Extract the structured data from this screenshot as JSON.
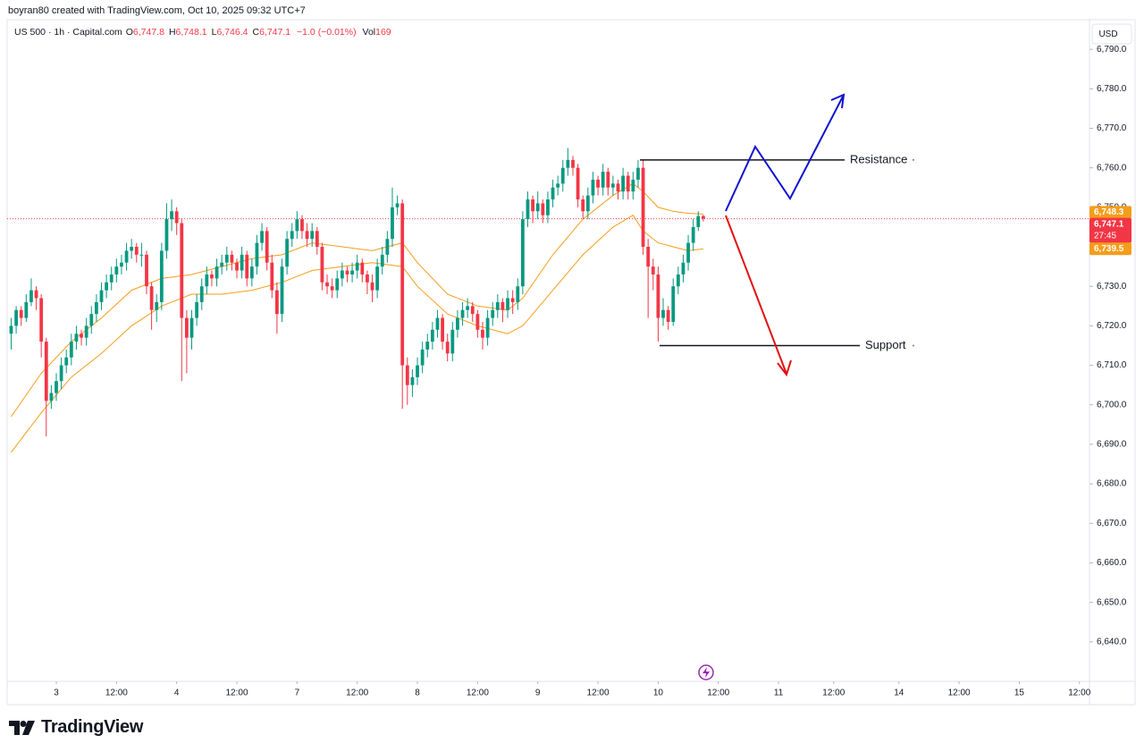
{
  "header": {
    "credit": "boyran80 created with TradingView.com, Oct 10, 2025 09:32 UTC+7",
    "symbol": "US 500 · 1h · Capital.com",
    "ohlc": [
      {
        "key": "O",
        "value": "6,747.8"
      },
      {
        "key": "H",
        "value": "6,748.1"
      },
      {
        "key": "L",
        "value": "6,746.4"
      },
      {
        "key": "C",
        "value": "6,747.1"
      }
    ],
    "change": "−1.0 (−0.01%)",
    "vol_key": "Vol",
    "vol": "169",
    "logo": "TradingView"
  },
  "chart_data": {
    "type": "candlestick",
    "currency": "USD",
    "up_color": "#089981",
    "down_color": "#f23645",
    "xlim": [
      -9.8,
      206
    ],
    "ylim": [
      6630,
      6797.5
    ],
    "xticks": [
      {
        "value": 0,
        "label": "3"
      },
      {
        "value": 12,
        "label": "12:00"
      },
      {
        "value": 24,
        "label": "4"
      },
      {
        "value": 36,
        "label": "12:00"
      },
      {
        "value": 48,
        "label": "7"
      },
      {
        "value": 60,
        "label": "12:00"
      },
      {
        "value": 72,
        "label": "8"
      },
      {
        "value": 84,
        "label": "12:00"
      },
      {
        "value": 96,
        "label": "9"
      },
      {
        "value": 108,
        "label": "12:00"
      },
      {
        "value": 120,
        "label": "10"
      },
      {
        "value": 132,
        "label": "12:00"
      },
      {
        "value": 144,
        "label": "11"
      },
      {
        "value": 155,
        "label": "12:00"
      },
      {
        "value": 168,
        "label": "14"
      },
      {
        "value": 180,
        "label": "12:00"
      },
      {
        "value": 192,
        "label": "15"
      },
      {
        "value": 204,
        "label": "12:00"
      }
    ],
    "yticks": [
      {
        "value": 6640,
        "label": "6,640.0"
      },
      {
        "value": 6650,
        "label": "6,650.0"
      },
      {
        "value": 6660,
        "label": "6,660.0"
      },
      {
        "value": 6670,
        "label": "6,670.0"
      },
      {
        "value": 6680,
        "label": "6,680.0"
      },
      {
        "value": 6690,
        "label": "6,690.0"
      },
      {
        "value": 6700,
        "label": "6,700.0"
      },
      {
        "value": 6710,
        "label": "6,710.0"
      },
      {
        "value": 6720,
        "label": "6,720.0"
      },
      {
        "value": 6730,
        "label": "6,730.0"
      },
      {
        "value": 6740,
        "label": "6,740.0"
      },
      {
        "value": 6750,
        "label": "6,750.0"
      },
      {
        "value": 6760,
        "label": "6,760.0"
      },
      {
        "value": 6770,
        "label": "6,770.0"
      },
      {
        "value": 6780,
        "label": "6,780.0"
      },
      {
        "value": 6790,
        "label": "6,790.0"
      }
    ],
    "x": [
      -9,
      -8,
      -7,
      -6,
      -5,
      -4,
      -3,
      -2,
      -1,
      0,
      1,
      2,
      3,
      4,
      5,
      6,
      7,
      8,
      9,
      10,
      11,
      12,
      13,
      14,
      15,
      16,
      17,
      18,
      19,
      20,
      21,
      22,
      23,
      24,
      25,
      26,
      27,
      28,
      29,
      30,
      31,
      32,
      33,
      34,
      35,
      36,
      37,
      38,
      39,
      40,
      41,
      42,
      43,
      44,
      45,
      46,
      47,
      48,
      49,
      50,
      51,
      52,
      53,
      54,
      55,
      56,
      57,
      58,
      59,
      60,
      61,
      62,
      63,
      64,
      65,
      66,
      67,
      68,
      69,
      70,
      71,
      72,
      73,
      74,
      75,
      76,
      77,
      78,
      79,
      80,
      81,
      82,
      83,
      84,
      85,
      86,
      87,
      88,
      89,
      90,
      91,
      92,
      93,
      94,
      95,
      96,
      97,
      98,
      99,
      100,
      101,
      102,
      103,
      104,
      105,
      106,
      107,
      108,
      109,
      110,
      111,
      112,
      113,
      114,
      115,
      116,
      117,
      118,
      119,
      120,
      121,
      122,
      123,
      124,
      125,
      126,
      127,
      128,
      129
    ],
    "candles": [
      [
        6718,
        6722,
        6714,
        6720
      ],
      [
        6720,
        6725,
        6718,
        6724
      ],
      [
        6724,
        6725,
        6720,
        6722
      ],
      [
        6722,
        6728,
        6721,
        6726
      ],
      [
        6726,
        6732,
        6725,
        6729
      ],
      [
        6729,
        6730,
        6724,
        6727
      ],
      [
        6727,
        6728,
        6712,
        6716
      ],
      [
        6716,
        6717,
        6692,
        6701
      ],
      [
        6701,
        6705,
        6699,
        6703
      ],
      [
        6703,
        6708,
        6701,
        6706
      ],
      [
        6706,
        6712,
        6704,
        6710
      ],
      [
        6710,
        6714,
        6708,
        6712
      ],
      [
        6712,
        6718,
        6710,
        6716
      ],
      [
        6716,
        6720,
        6714,
        6718
      ],
      [
        6718,
        6719,
        6715,
        6717
      ],
      [
        6717,
        6722,
        6715,
        6720
      ],
      [
        6720,
        6725,
        6718,
        6723
      ],
      [
        6723,
        6728,
        6721,
        6726
      ],
      [
        6726,
        6731,
        6724,
        6729
      ],
      [
        6729,
        6733,
        6727,
        6731
      ],
      [
        6731,
        6735,
        6729,
        6733
      ],
      [
        6733,
        6737,
        6731,
        6735
      ],
      [
        6735,
        6738,
        6733,
        6736
      ],
      [
        6736,
        6741,
        6734,
        6739
      ],
      [
        6739,
        6742,
        6737,
        6740
      ],
      [
        6740,
        6741,
        6736,
        6738
      ],
      [
        6738,
        6741,
        6735,
        6738
      ],
      [
        6738,
        6739,
        6728,
        6730
      ],
      [
        6730,
        6731,
        6719,
        6724
      ],
      [
        6724,
        6728,
        6721,
        6726
      ],
      [
        6726,
        6741,
        6724,
        6739
      ],
      [
        6739,
        6751,
        6737,
        6747
      ],
      [
        6747,
        6752,
        6744,
        6749
      ],
      [
        6749,
        6750,
        6743,
        6746
      ],
      [
        6746,
        6747,
        6706,
        6722
      ],
      [
        6722,
        6724,
        6708,
        6717
      ],
      [
        6717,
        6724,
        6714,
        6722
      ],
      [
        6722,
        6728,
        6720,
        6726
      ],
      [
        6726,
        6732,
        6724,
        6730
      ],
      [
        6730,
        6735,
        6728,
        6733
      ],
      [
        6733,
        6734,
        6730,
        6732
      ],
      [
        6732,
        6737,
        6730,
        6735
      ],
      [
        6735,
        6738,
        6733,
        6736
      ],
      [
        6736,
        6740,
        6734,
        6738
      ],
      [
        6738,
        6739,
        6734,
        6736
      ],
      [
        6736,
        6737,
        6732,
        6734
      ],
      [
        6734,
        6740,
        6732,
        6738
      ],
      [
        6738,
        6739,
        6730,
        6732
      ],
      [
        6732,
        6737,
        6730,
        6735
      ],
      [
        6735,
        6743,
        6733,
        6741
      ],
      [
        6741,
        6746,
        6739,
        6744
      ],
      [
        6744,
        6745,
        6734,
        6736
      ],
      [
        6736,
        6738,
        6727,
        6729
      ],
      [
        6729,
        6731,
        6718,
        6723
      ],
      [
        6723,
        6737,
        6721,
        6735
      ],
      [
        6735,
        6744,
        6733,
        6742
      ],
      [
        6742,
        6746,
        6740,
        6744
      ],
      [
        6744,
        6749,
        6742,
        6747
      ],
      [
        6747,
        6748,
        6742,
        6744
      ],
      [
        6744,
        6746,
        6740,
        6742
      ],
      [
        6742,
        6746,
        6740,
        6744
      ],
      [
        6744,
        6745,
        6738,
        6740
      ],
      [
        6740,
        6741,
        6729,
        6731
      ],
      [
        6731,
        6733,
        6728,
        6730
      ],
      [
        6730,
        6732,
        6727,
        6729
      ],
      [
        6729,
        6734,
        6727,
        6732
      ],
      [
        6732,
        6736,
        6730,
        6734
      ],
      [
        6734,
        6735,
        6731,
        6733
      ],
      [
        6733,
        6736,
        6731,
        6734
      ],
      [
        6734,
        6738,
        6732,
        6736
      ],
      [
        6736,
        6737,
        6731,
        6733
      ],
      [
        6733,
        6734,
        6728,
        6731
      ],
      [
        6731,
        6733,
        6726,
        6729
      ],
      [
        6729,
        6737,
        6727,
        6735
      ],
      [
        6735,
        6740,
        6733,
        6738
      ],
      [
        6738,
        6744,
        6736,
        6742
      ],
      [
        6742,
        6755,
        6740,
        6750
      ],
      [
        6750,
        6753,
        6748,
        6751
      ],
      [
        6751,
        6752,
        6699,
        6710
      ],
      [
        6710,
        6712,
        6700,
        6705
      ],
      [
        6705,
        6709,
        6702,
        6707
      ],
      [
        6707,
        6712,
        6705,
        6710
      ],
      [
        6710,
        6716,
        6708,
        6714
      ],
      [
        6714,
        6718,
        6712,
        6716
      ],
      [
        6716,
        6721,
        6714,
        6719
      ],
      [
        6719,
        6724,
        6717,
        6722
      ],
      [
        6722,
        6723,
        6714,
        6716
      ],
      [
        6716,
        6718,
        6711,
        6713
      ],
      [
        6713,
        6721,
        6711,
        6719
      ],
      [
        6719,
        6724,
        6717,
        6722
      ],
      [
        6722,
        6726,
        6720,
        6724
      ],
      [
        6724,
        6727,
        6722,
        6725
      ],
      [
        6725,
        6726,
        6721,
        6723
      ],
      [
        6723,
        6724,
        6717,
        6719
      ],
      [
        6719,
        6721,
        6714,
        6717
      ],
      [
        6717,
        6724,
        6715,
        6722
      ],
      [
        6722,
        6726,
        6720,
        6724
      ],
      [
        6724,
        6728,
        6722,
        6726
      ],
      [
        6726,
        6727,
        6721,
        6724
      ],
      [
        6724,
        6729,
        6722,
        6727
      ],
      [
        6727,
        6729,
        6723,
        6726
      ],
      [
        6726,
        6732,
        6724,
        6730
      ],
      [
        6730,
        6749,
        6728,
        6747
      ],
      [
        6747,
        6754,
        6745,
        6752
      ],
      [
        6752,
        6753,
        6746,
        6749
      ],
      [
        6749,
        6754,
        6747,
        6751
      ],
      [
        6751,
        6752,
        6746,
        6748
      ],
      [
        6748,
        6754,
        6746,
        6752
      ],
      [
        6752,
        6757,
        6750,
        6755
      ],
      [
        6755,
        6758,
        6753,
        6756
      ],
      [
        6756,
        6762,
        6754,
        6760
      ],
      [
        6760,
        6765,
        6758,
        6762
      ],
      [
        6762,
        6763,
        6758,
        6760
      ],
      [
        6760,
        6761,
        6750,
        6752
      ],
      [
        6752,
        6753,
        6747,
        6749
      ],
      [
        6749,
        6755,
        6747,
        6753
      ],
      [
        6753,
        6759,
        6751,
        6757
      ],
      [
        6757,
        6758,
        6753,
        6755
      ],
      [
        6755,
        6761,
        6753,
        6759
      ],
      [
        6759,
        6760,
        6753,
        6755
      ],
      [
        6755,
        6758,
        6753,
        6756
      ],
      [
        6756,
        6757,
        6752,
        6754
      ],
      [
        6754,
        6760,
        6752,
        6758
      ],
      [
        6758,
        6759,
        6752,
        6754
      ],
      [
        6754,
        6759,
        6752,
        6757
      ],
      [
        6757,
        6762,
        6755,
        6760
      ],
      [
        6760,
        6762,
        6738,
        6740
      ],
      [
        6740,
        6742,
        6722,
        6735
      ],
      [
        6735,
        6737,
        6729,
        6733
      ],
      [
        6733,
        6735,
        6716,
        6722
      ],
      [
        6722,
        6727,
        6720,
        6724
      ],
      [
        6724,
        6725,
        6719,
        6721
      ],
      [
        6721,
        6732,
        6720,
        6730
      ],
      [
        6730,
        6735,
        6728,
        6733
      ],
      [
        6733,
        6738,
        6731,
        6736
      ],
      [
        6736,
        6743,
        6734,
        6741
      ],
      [
        6741,
        6747,
        6739,
        6745
      ],
      [
        6745,
        6749,
        6744,
        6747.8
      ],
      [
        6747.8,
        6748.1,
        6746.4,
        6747.1
      ]
    ],
    "moving_averages": [
      {
        "color": "#f59d1a",
        "x": [
          -9,
          -3,
          3,
          9,
          15,
          21,
          27,
          33,
          39,
          45,
          51,
          57,
          63,
          69,
          72,
          78,
          84,
          90,
          93,
          99,
          105,
          111,
          115,
          117,
          120,
          123,
          126,
          129
        ],
        "values": [
          6697,
          6708,
          6716,
          6722,
          6729,
          6732,
          6733,
          6735,
          6737,
          6738,
          6741,
          6740,
          6739,
          6741,
          6736,
          6728,
          6725,
          6724,
          6727,
          6738,
          6747,
          6753,
          6756,
          6754,
          6750,
          6749,
          6748.5,
          6748.3
        ]
      },
      {
        "color": "#f59d1a",
        "x": [
          -9,
          -3,
          3,
          9,
          15,
          21,
          27,
          33,
          39,
          45,
          51,
          57,
          63,
          69,
          72,
          78,
          84,
          90,
          93,
          99,
          105,
          111,
          115,
          117,
          120,
          123,
          126,
          129
        ],
        "values": [
          6688,
          6698,
          6707,
          6713,
          6720,
          6725,
          6728,
          6728,
          6729,
          6731,
          6734,
          6735,
          6736,
          6735,
          6730,
          6723,
          6720,
          6718,
          6720,
          6729,
          6738,
          6745,
          6748,
          6744,
          6741,
          6740,
          6739,
          6739.5
        ]
      }
    ],
    "price_tags": [
      {
        "value": 6748.3,
        "label": "6,748.3",
        "color": "#f59d1a"
      },
      {
        "value": 6747.1,
        "label": "6,747.1",
        "color": "#f23645",
        "countdown": "27:45"
      },
      {
        "value": 6739.5,
        "label": "6,739.5",
        "color": "#f59d1a"
      }
    ],
    "annotations": [
      {
        "label": "Resistance",
        "value": 6762
      },
      {
        "label": "Support",
        "value": 6715
      }
    ]
  }
}
